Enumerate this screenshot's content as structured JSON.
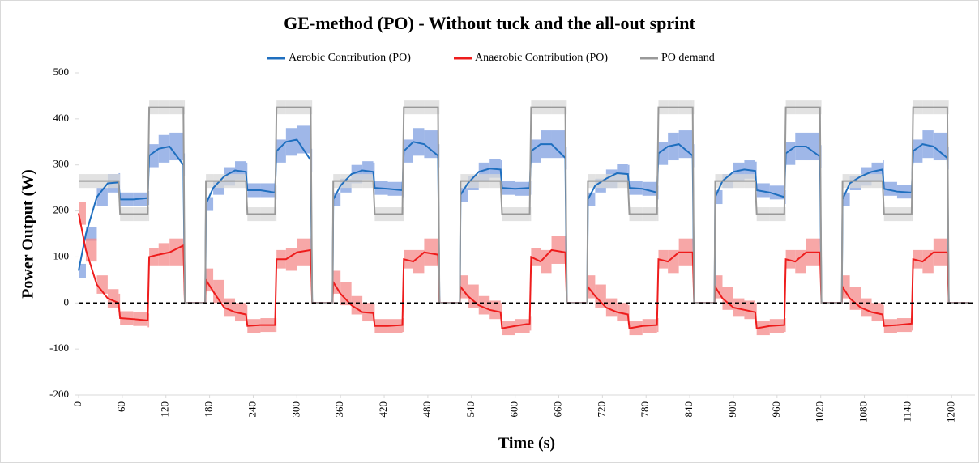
{
  "chart_data": {
    "type": "line",
    "title": "GE-method (PO) - Without tuck and the all-out sprint",
    "x_label": "Time (s)",
    "y_label": "Power Output (W)",
    "x": [
      0,
      10,
      25,
      40,
      55,
      57,
      75,
      95,
      97,
      110,
      125,
      144,
      146,
      174,
      175,
      185,
      200,
      215,
      230,
      232,
      250,
      270,
      272,
      285,
      300,
      319,
      321,
      349,
      350,
      360,
      375,
      390,
      405,
      407,
      425,
      445,
      447,
      460,
      475,
      494,
      496,
      524,
      525,
      535,
      550,
      565,
      580,
      582,
      600,
      620,
      622,
      635,
      650,
      669,
      671,
      699,
      700,
      710,
      725,
      740,
      755,
      757,
      775,
      795,
      797,
      810,
      825,
      844,
      846,
      874,
      875,
      885,
      900,
      915,
      930,
      932,
      950,
      970,
      972,
      985,
      1000,
      1019,
      1021,
      1049,
      1050,
      1060,
      1075,
      1090,
      1105,
      1107,
      1125,
      1145,
      1147,
      1160,
      1175,
      1194,
      1196,
      1224
    ],
    "series": [
      {
        "name": "Aerobic Contribution (PO)",
        "color": "#1f6fbf",
        "band_color": "#7f9fe0",
        "values": [
          70,
          150,
          230,
          260,
          262,
          225,
          225,
          228,
          320,
          335,
          340,
          300,
          0,
          0,
          215,
          250,
          275,
          288,
          285,
          245,
          245,
          240,
          330,
          350,
          355,
          310,
          0,
          0,
          225,
          255,
          280,
          288,
          285,
          250,
          248,
          245,
          330,
          350,
          345,
          320,
          0,
          0,
          235,
          260,
          285,
          292,
          290,
          250,
          248,
          250,
          330,
          345,
          345,
          315,
          0,
          0,
          225,
          255,
          270,
          282,
          280,
          250,
          248,
          240,
          325,
          340,
          345,
          320,
          0,
          0,
          230,
          265,
          285,
          290,
          287,
          245,
          240,
          230,
          325,
          340,
          340,
          318,
          0,
          0,
          225,
          260,
          275,
          285,
          290,
          248,
          242,
          240,
          330,
          345,
          340,
          315,
          0,
          0
        ],
        "error": [
          15,
          15,
          20,
          20,
          20,
          15,
          15,
          15,
          25,
          30,
          30,
          25,
          0,
          0,
          15,
          15,
          20,
          20,
          20,
          15,
          15,
          15,
          25,
          30,
          30,
          25,
          0,
          0,
          15,
          15,
          20,
          20,
          20,
          15,
          15,
          15,
          25,
          30,
          30,
          25,
          0,
          0,
          15,
          15,
          20,
          20,
          20,
          15,
          15,
          15,
          25,
          30,
          30,
          25,
          0,
          0,
          15,
          15,
          20,
          20,
          20,
          15,
          15,
          15,
          25,
          30,
          30,
          25,
          0,
          0,
          15,
          15,
          20,
          20,
          20,
          15,
          15,
          15,
          25,
          30,
          30,
          25,
          0,
          0,
          15,
          15,
          20,
          20,
          20,
          15,
          15,
          15,
          25,
          30,
          30,
          25,
          0,
          0
        ]
      },
      {
        "name": "Anaerobic Contribution (PO)",
        "color": "#ee1c1c",
        "band_color": "#f48a8a",
        "values": [
          195,
          115,
          40,
          10,
          0,
          -33,
          -35,
          -38,
          100,
          105,
          110,
          125,
          0,
          0,
          50,
          25,
          -10,
          -20,
          -25,
          -50,
          -48,
          -48,
          95,
          95,
          110,
          115,
          0,
          0,
          45,
          20,
          -5,
          -20,
          -22,
          -50,
          -50,
          -48,
          95,
          90,
          110,
          105,
          0,
          0,
          35,
          15,
          -5,
          -15,
          -20,
          -55,
          -50,
          -45,
          100,
          90,
          115,
          110,
          0,
          0,
          35,
          15,
          -10,
          -20,
          -25,
          -55,
          -50,
          -48,
          95,
          90,
          110,
          110,
          0,
          0,
          35,
          10,
          -10,
          -15,
          -20,
          -55,
          -50,
          -48,
          95,
          90,
          110,
          110,
          0,
          0,
          35,
          10,
          -10,
          -20,
          -25,
          -50,
          -48,
          -45,
          95,
          90,
          110,
          110,
          0,
          0
        ],
        "error": [
          25,
          25,
          20,
          20,
          20,
          15,
          15,
          15,
          20,
          25,
          30,
          30,
          0,
          0,
          25,
          25,
          20,
          20,
          20,
          15,
          15,
          15,
          20,
          25,
          30,
          30,
          0,
          0,
          25,
          25,
          20,
          20,
          20,
          15,
          15,
          15,
          20,
          25,
          30,
          30,
          0,
          0,
          25,
          25,
          20,
          20,
          20,
          15,
          15,
          15,
          20,
          25,
          30,
          30,
          0,
          0,
          25,
          25,
          20,
          20,
          20,
          15,
          15,
          15,
          20,
          25,
          30,
          30,
          0,
          0,
          25,
          25,
          20,
          20,
          20,
          15,
          15,
          15,
          20,
          25,
          30,
          30,
          0,
          0,
          25,
          25,
          20,
          20,
          20,
          15,
          15,
          15,
          20,
          25,
          30,
          30,
          0,
          0
        ]
      },
      {
        "name": "PO demand",
        "color": "#999999",
        "band_color": "#d8d8d8",
        "values": [
          265,
          265,
          265,
          265,
          265,
          193,
          193,
          193,
          425,
          425,
          425,
          425,
          0,
          0,
          265,
          265,
          265,
          265,
          265,
          193,
          193,
          193,
          425,
          425,
          425,
          425,
          0,
          0,
          265,
          265,
          265,
          265,
          265,
          193,
          193,
          193,
          425,
          425,
          425,
          425,
          0,
          0,
          265,
          265,
          265,
          265,
          265,
          193,
          193,
          193,
          425,
          425,
          425,
          425,
          0,
          0,
          265,
          265,
          265,
          265,
          265,
          193,
          193,
          193,
          425,
          425,
          425,
          425,
          0,
          0,
          265,
          265,
          265,
          265,
          265,
          193,
          193,
          193,
          425,
          425,
          425,
          425,
          0,
          0,
          265,
          265,
          265,
          265,
          265,
          193,
          193,
          193,
          425,
          425,
          425,
          425,
          0,
          0
        ],
        "error": [
          15,
          15,
          15,
          15,
          15,
          15,
          15,
          15,
          15,
          15,
          15,
          15,
          0,
          0,
          15,
          15,
          15,
          15,
          15,
          15,
          15,
          15,
          15,
          15,
          15,
          15,
          0,
          0,
          15,
          15,
          15,
          15,
          15,
          15,
          15,
          15,
          15,
          15,
          15,
          15,
          0,
          0,
          15,
          15,
          15,
          15,
          15,
          15,
          15,
          15,
          15,
          15,
          15,
          15,
          0,
          0,
          15,
          15,
          15,
          15,
          15,
          15,
          15,
          15,
          15,
          15,
          15,
          15,
          0,
          0,
          15,
          15,
          15,
          15,
          15,
          15,
          15,
          15,
          15,
          15,
          15,
          15,
          0,
          0,
          15,
          15,
          15,
          15,
          15,
          15,
          15,
          15,
          15,
          15,
          15,
          15,
          0,
          0
        ]
      }
    ],
    "xlim": [
      0,
      1232
    ],
    "ylim": [
      -200,
      500
    ],
    "xticks": [
      0,
      60,
      120,
      180,
      240,
      300,
      360,
      420,
      480,
      540,
      600,
      660,
      720,
      780,
      840,
      900,
      960,
      1020,
      1080,
      1140,
      1200
    ],
    "yticks": [
      -200,
      -100,
      0,
      100,
      200,
      300,
      400,
      500
    ],
    "zero_line": true,
    "legend": "top"
  }
}
